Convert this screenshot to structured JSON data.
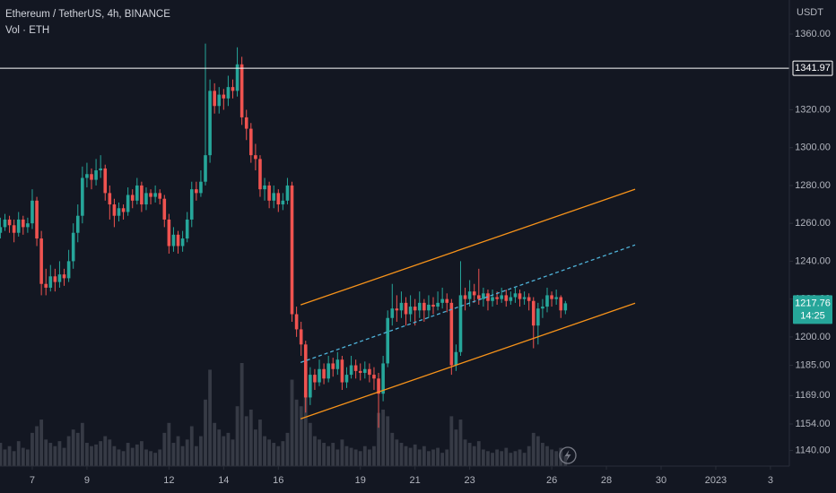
{
  "chart_data": {
    "type": "candlestick",
    "title": "Ethereum / TetherUS, 4h, BINANCE",
    "subtitle": "Vol · ETH",
    "y_axis_label": "USDT",
    "up_color": "#26a69a",
    "down_color": "#ef5350",
    "volume_color": "#363a45",
    "background": "#131722",
    "grid": false,
    "ylim": [
      1136,
      1378
    ],
    "yticks": [
      {
        "value": 1360,
        "label": "1360.00"
      },
      {
        "value": 1320,
        "label": "1320.00"
      },
      {
        "value": 1300,
        "label": "1300.00"
      },
      {
        "value": 1280,
        "label": "1280.00"
      },
      {
        "value": 1260,
        "label": "1260.00"
      },
      {
        "value": 1240,
        "label": "1240.00"
      },
      {
        "value": 1220,
        "label": "1220.00"
      },
      {
        "value": 1200,
        "label": "1200.00"
      },
      {
        "value": 1185,
        "label": "1185.00"
      },
      {
        "value": 1169,
        "label": "1169.00"
      },
      {
        "value": 1154,
        "label": "1154.00"
      },
      {
        "value": 1140,
        "label": "1140.00"
      }
    ],
    "xlim": [
      -0.08,
      173.15
    ],
    "xticks": [
      {
        "value": 7,
        "label": "7"
      },
      {
        "value": 19,
        "label": "9"
      },
      {
        "value": 37,
        "label": "12"
      },
      {
        "value": 49,
        "label": "14"
      },
      {
        "value": 61,
        "label": "16"
      },
      {
        "value": 79,
        "label": "19"
      },
      {
        "value": 91,
        "label": "21"
      },
      {
        "value": 103,
        "label": "23"
      },
      {
        "value": 121,
        "label": "26"
      },
      {
        "value": 133,
        "label": "28"
      },
      {
        "value": 145,
        "label": "30"
      },
      {
        "value": 157,
        "label": "2023"
      },
      {
        "value": 169,
        "label": "3"
      }
    ],
    "ohlc": [
      [
        1255,
        1263,
        1252,
        1258
      ],
      [
        1258,
        1265,
        1256,
        1262
      ],
      [
        1262,
        1264,
        1255,
        1259
      ],
      [
        1259,
        1262,
        1250,
        1255
      ],
      [
        1255,
        1266,
        1253,
        1262
      ],
      [
        1262,
        1264,
        1254,
        1258
      ],
      [
        1258,
        1263,
        1255,
        1260
      ],
      [
        1260,
        1278,
        1257,
        1272
      ],
      [
        1272,
        1274,
        1248,
        1252
      ],
      [
        1252,
        1256,
        1222,
        1228
      ],
      [
        1228,
        1236,
        1222,
        1226
      ],
      [
        1226,
        1238,
        1224,
        1232
      ],
      [
        1232,
        1236,
        1224,
        1229
      ],
      [
        1229,
        1240,
        1226,
        1233
      ],
      [
        1233,
        1236,
        1227,
        1231
      ],
      [
        1231,
        1246,
        1229,
        1240
      ],
      [
        1240,
        1260,
        1236,
        1255
      ],
      [
        1255,
        1270,
        1250,
        1264
      ],
      [
        1264,
        1290,
        1260,
        1284
      ],
      [
        1284,
        1292,
        1279,
        1286
      ],
      [
        1286,
        1289,
        1278,
        1283
      ],
      [
        1283,
        1294,
        1280,
        1288
      ],
      [
        1288,
        1296,
        1284,
        1289
      ],
      [
        1289,
        1291,
        1272,
        1276
      ],
      [
        1276,
        1280,
        1262,
        1270
      ],
      [
        1270,
        1273,
        1258,
        1264
      ],
      [
        1264,
        1271,
        1261,
        1268
      ],
      [
        1268,
        1270,
        1262,
        1266
      ],
      [
        1266,
        1279,
        1264,
        1275
      ],
      [
        1275,
        1278,
        1268,
        1272
      ],
      [
        1272,
        1284,
        1270,
        1280
      ],
      [
        1280,
        1282,
        1266,
        1270
      ],
      [
        1270,
        1279,
        1267,
        1276
      ],
      [
        1276,
        1278,
        1270,
        1274
      ],
      [
        1274,
        1280,
        1271,
        1276
      ],
      [
        1276,
        1278,
        1270,
        1273
      ],
      [
        1273,
        1275,
        1258,
        1262
      ],
      [
        1262,
        1265,
        1244,
        1248
      ],
      [
        1248,
        1258,
        1245,
        1254
      ],
      [
        1254,
        1256,
        1244,
        1248
      ],
      [
        1248,
        1256,
        1245,
        1252
      ],
      [
        1252,
        1266,
        1250,
        1262
      ],
      [
        1262,
        1282,
        1258,
        1278
      ],
      [
        1278,
        1282,
        1272,
        1276
      ],
      [
        1276,
        1288,
        1274,
        1282
      ],
      [
        1282,
        1355,
        1280,
        1296
      ],
      [
        1296,
        1336,
        1292,
        1330
      ],
      [
        1330,
        1334,
        1318,
        1322
      ],
      [
        1322,
        1332,
        1318,
        1328
      ],
      [
        1328,
        1331,
        1320,
        1326
      ],
      [
        1326,
        1338,
        1322,
        1332
      ],
      [
        1332,
        1336,
        1326,
        1330
      ],
      [
        1330,
        1353,
        1327,
        1344
      ],
      [
        1344,
        1348,
        1312,
        1316
      ],
      [
        1316,
        1320,
        1304,
        1310
      ],
      [
        1310,
        1313,
        1292,
        1296
      ],
      [
        1296,
        1302,
        1288,
        1294
      ],
      [
        1294,
        1296,
        1274,
        1278
      ],
      [
        1278,
        1284,
        1272,
        1280
      ],
      [
        1280,
        1282,
        1268,
        1272
      ],
      [
        1272,
        1280,
        1268,
        1276
      ],
      [
        1276,
        1278,
        1266,
        1270
      ],
      [
        1270,
        1276,
        1267,
        1272
      ],
      [
        1272,
        1284,
        1270,
        1280
      ],
      [
        1280,
        1282,
        1208,
        1212
      ],
      [
        1212,
        1216,
        1200,
        1204
      ],
      [
        1204,
        1208,
        1190,
        1196
      ],
      [
        1196,
        1198,
        1160,
        1168
      ],
      [
        1168,
        1184,
        1164,
        1180
      ],
      [
        1180,
        1183,
        1172,
        1176
      ],
      [
        1176,
        1188,
        1174,
        1183
      ],
      [
        1183,
        1186,
        1175,
        1178
      ],
      [
        1178,
        1190,
        1176,
        1186
      ],
      [
        1186,
        1189,
        1179,
        1183
      ],
      [
        1183,
        1192,
        1180,
        1188
      ],
      [
        1188,
        1190,
        1172,
        1176
      ],
      [
        1176,
        1184,
        1173,
        1180
      ],
      [
        1180,
        1190,
        1178,
        1185
      ],
      [
        1185,
        1188,
        1178,
        1182
      ],
      [
        1182,
        1186,
        1177,
        1181
      ],
      [
        1181,
        1187,
        1178,
        1183
      ],
      [
        1183,
        1186,
        1176,
        1180
      ],
      [
        1180,
        1184,
        1172,
        1178
      ],
      [
        1178,
        1181,
        1152,
        1170
      ],
      [
        1170,
        1190,
        1166,
        1186
      ],
      [
        1186,
        1214,
        1184,
        1210
      ],
      [
        1210,
        1228,
        1206,
        1215
      ],
      [
        1215,
        1222,
        1208,
        1214
      ],
      [
        1214,
        1224,
        1210,
        1218
      ],
      [
        1218,
        1221,
        1206,
        1212
      ],
      [
        1212,
        1222,
        1208,
        1216
      ],
      [
        1216,
        1220,
        1206,
        1214
      ],
      [
        1214,
        1224,
        1210,
        1218
      ],
      [
        1218,
        1220,
        1208,
        1214
      ],
      [
        1214,
        1222,
        1210,
        1217
      ],
      [
        1217,
        1221,
        1212,
        1216
      ],
      [
        1216,
        1224,
        1214,
        1218
      ],
      [
        1218,
        1226,
        1215,
        1220
      ],
      [
        1220,
        1223,
        1213,
        1218
      ],
      [
        1218,
        1220,
        1180,
        1185
      ],
      [
        1185,
        1196,
        1182,
        1192
      ],
      [
        1192,
        1240,
        1190,
        1222
      ],
      [
        1222,
        1226,
        1214,
        1220
      ],
      [
        1220,
        1230,
        1216,
        1224
      ],
      [
        1224,
        1228,
        1218,
        1222
      ],
      [
        1222,
        1236,
        1217,
        1220
      ],
      [
        1220,
        1226,
        1216,
        1223
      ],
      [
        1223,
        1225,
        1214,
        1219
      ],
      [
        1219,
        1225,
        1216,
        1221
      ],
      [
        1221,
        1224,
        1217,
        1220
      ],
      [
        1220,
        1226,
        1218,
        1222
      ],
      [
        1222,
        1225,
        1216,
        1219
      ],
      [
        1219,
        1224,
        1217,
        1221
      ],
      [
        1221,
        1226,
        1218,
        1223
      ],
      [
        1223,
        1225,
        1216,
        1220
      ],
      [
        1220,
        1224,
        1217,
        1221
      ],
      [
        1221,
        1223,
        1214,
        1219
      ],
      [
        1219,
        1221,
        1194,
        1206
      ],
      [
        1206,
        1218,
        1196,
        1215
      ],
      [
        1215,
        1220,
        1210,
        1216
      ],
      [
        1216,
        1226,
        1213,
        1222
      ],
      [
        1222,
        1224,
        1216,
        1220
      ],
      [
        1220,
        1225,
        1217,
        1221
      ],
      [
        1221,
        1222,
        1210,
        1214
      ],
      [
        1214,
        1219,
        1212,
        1217.76
      ]
    ],
    "volume": [
      14000,
      10000,
      12000,
      9000,
      15000,
      11000,
      10000,
      20000,
      24000,
      28000,
      16000,
      14000,
      12000,
      15000,
      11000,
      18000,
      22000,
      20000,
      26000,
      14000,
      12000,
      13000,
      15000,
      18000,
      16000,
      12000,
      10000,
      9000,
      14000,
      11000,
      13000,
      15000,
      10000,
      9000,
      8000,
      10000,
      20000,
      26000,
      14000,
      18000,
      12000,
      16000,
      24000,
      12000,
      18000,
      40000,
      58000,
      26000,
      22000,
      18000,
      20000,
      16000,
      36000,
      62000,
      30000,
      34000,
      22000,
      28000,
      18000,
      16000,
      14000,
      12000,
      15000,
      20000,
      52000,
      40000,
      36000,
      44000,
      26000,
      18000,
      16000,
      14000,
      12000,
      14000,
      10000,
      16000,
      12000,
      11000,
      10000,
      9000,
      12000,
      10000,
      12000,
      32000,
      34000,
      30000,
      20000,
      16000,
      14000,
      12000,
      11000,
      13000,
      10000,
      12000,
      9000,
      10000,
      11000,
      8000,
      10000,
      30000,
      22000,
      28000,
      16000,
      14000,
      12000,
      15000,
      10000,
      9000,
      8000,
      10000,
      9000,
      11000,
      8000,
      9000,
      10000,
      8000,
      12000,
      20000,
      18000,
      14000,
      12000,
      10000,
      9000,
      11000,
      6000
    ],
    "horizontal_line": {
      "value": 1341.97,
      "color": "#ffffff"
    },
    "last_price": {
      "value": 1217.76,
      "countdown": "14:25"
    },
    "trendlines": [
      {
        "color": "#f7931a",
        "dashed": false,
        "points": [
          [
            65.9,
            1216.9
          ],
          [
            139.3,
            1278
          ]
        ]
      },
      {
        "color": "#4fb3d9",
        "dashed": true,
        "points": [
          [
            65.9,
            1186.5
          ],
          [
            139.3,
            1248.6
          ]
        ]
      },
      {
        "color": "#f7931a",
        "dashed": false,
        "points": [
          [
            65.9,
            1156.7
          ],
          [
            139.3,
            1217.8
          ]
        ]
      }
    ]
  }
}
